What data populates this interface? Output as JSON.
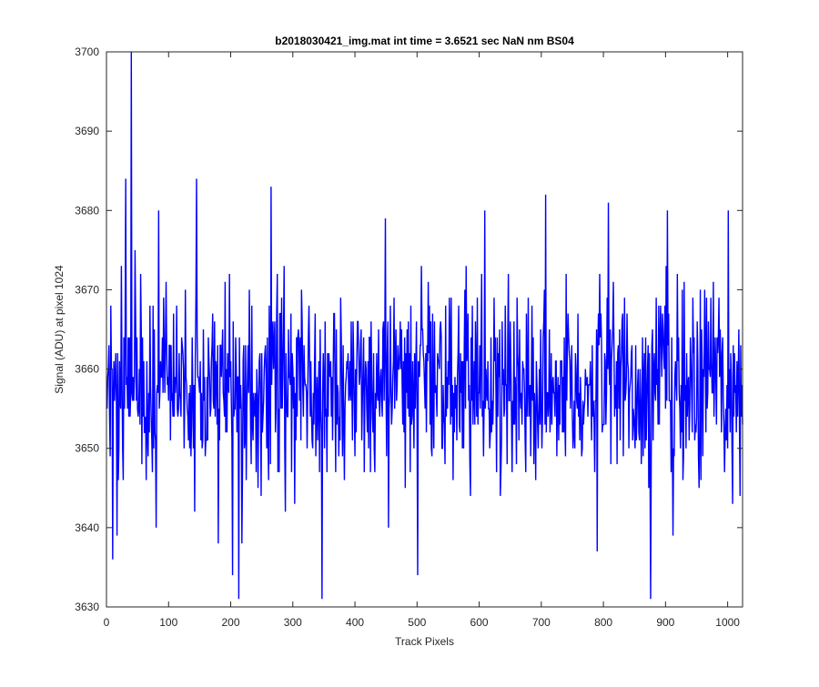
{
  "chart_data": {
    "type": "line",
    "title": "b2018030421_img.mat int time = 3.6521 sec  NaN nm BS04",
    "xlabel": "Track Pixels",
    "ylabel": "Signal (ADU) at pixel 1024",
    "xlim": [
      0,
      1024
    ],
    "ylim": [
      3630,
      3700
    ],
    "xticks": [
      0,
      100,
      200,
      300,
      400,
      500,
      600,
      700,
      800,
      900,
      1000
    ],
    "yticks": [
      3630,
      3640,
      3650,
      3660,
      3670,
      3680,
      3690,
      3700
    ],
    "grid": false,
    "box": true,
    "series": [
      {
        "color": "#0000ff",
        "mean": 3658,
        "noise_std": 6,
        "n_points": 1024,
        "x": [
          1,
          7,
          10,
          17,
          24,
          31,
          34,
          40,
          46,
          80,
          84,
          145,
          180,
          203,
          213,
          218,
          265,
          347,
          449,
          501,
          541,
          609,
          707,
          790,
          808,
          876,
          903,
          912,
          1001,
          1008,
          1024
        ],
        "y": [
          3655,
          3668,
          3636,
          3639,
          3673,
          3684,
          3655,
          3700,
          3675,
          3640,
          3680,
          3684,
          3638,
          3634,
          3631,
          3638,
          3683,
          3631,
          3679,
          3634,
          3650,
          3680,
          3682,
          3637,
          3681,
          3631,
          3680,
          3639,
          3680,
          3643,
          3653
        ]
      }
    ]
  }
}
